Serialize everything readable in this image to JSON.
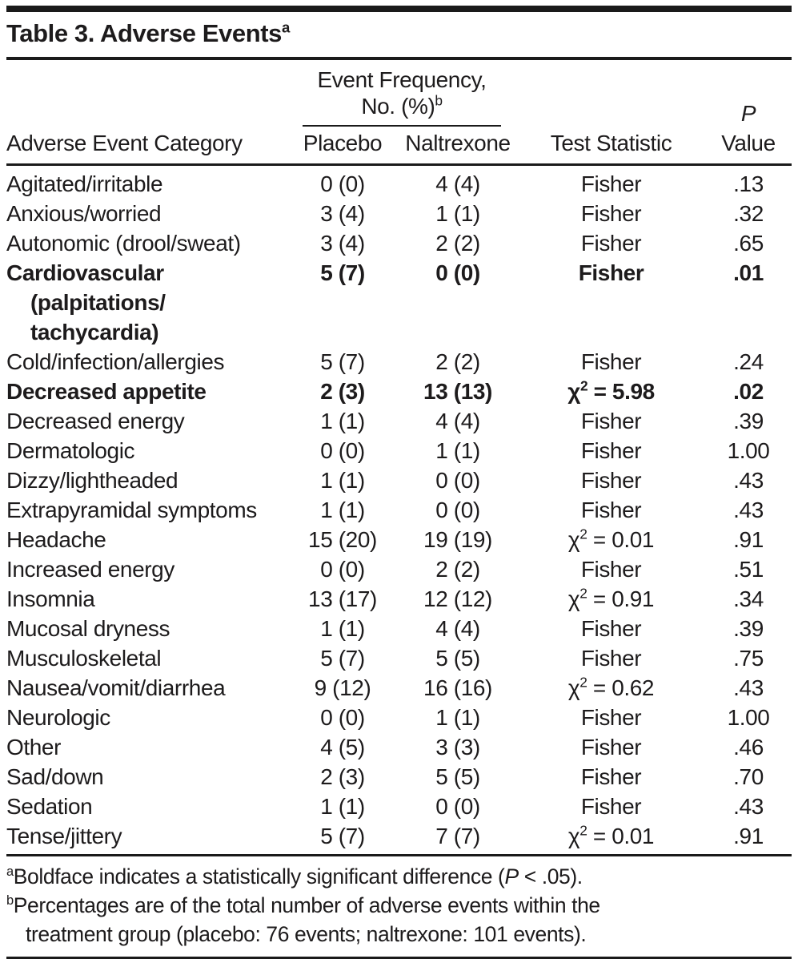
{
  "colors": {
    "text": "#1d1b1c",
    "rule": "#1a1a1a",
    "background": "#ffffff"
  },
  "table": {
    "title": "Table 3. Adverse Events",
    "title_marker": "a",
    "columns": {
      "category": "Adverse Event Category",
      "spanner_line1": "Event Frequency,",
      "spanner_line2": "No. (%)",
      "spanner_marker": "b",
      "placebo": "Placebo",
      "naltrexone": "Naltrexone",
      "test_statistic": "Test Statistic",
      "p_line1": "P",
      "p_line2": "Value"
    },
    "rows": [
      {
        "category_lines": [
          "Agitated/irritable"
        ],
        "placebo": "0 (0)",
        "naltrexone": "4 (4)",
        "test": "Fisher",
        "p": ".13",
        "bold": false
      },
      {
        "category_lines": [
          "Anxious/worried"
        ],
        "placebo": "3 (4)",
        "naltrexone": "1 (1)",
        "test": "Fisher",
        "p": ".32",
        "bold": false
      },
      {
        "category_lines": [
          "Autonomic (drool/sweat)"
        ],
        "placebo": "3 (4)",
        "naltrexone": "2 (2)",
        "test": "Fisher",
        "p": ".65",
        "bold": false
      },
      {
        "category_lines": [
          "Cardiovascular",
          "(palpitations/",
          "tachycardia)"
        ],
        "placebo": "5 (7)",
        "naltrexone": "0 (0)",
        "test": "Fisher",
        "p": ".01",
        "bold": true
      },
      {
        "category_lines": [
          "Cold/infection/allergies"
        ],
        "placebo": "5 (7)",
        "naltrexone": "2 (2)",
        "test": "Fisher",
        "p": ".24",
        "bold": false
      },
      {
        "category_lines": [
          "Decreased appetite"
        ],
        "placebo": "2 (3)",
        "naltrexone": "13 (13)",
        "test": "χ2 = 5.98",
        "p": ".02",
        "bold": true
      },
      {
        "category_lines": [
          "Decreased energy"
        ],
        "placebo": "1 (1)",
        "naltrexone": "4 (4)",
        "test": "Fisher",
        "p": ".39",
        "bold": false
      },
      {
        "category_lines": [
          "Dermatologic"
        ],
        "placebo": "0 (0)",
        "naltrexone": "1 (1)",
        "test": "Fisher",
        "p": "1.00",
        "bold": false
      },
      {
        "category_lines": [
          "Dizzy/lightheaded"
        ],
        "placebo": "1 (1)",
        "naltrexone": "0 (0)",
        "test": "Fisher",
        "p": ".43",
        "bold": false
      },
      {
        "category_lines": [
          "Extrapyramidal symptoms"
        ],
        "placebo": "1 (1)",
        "naltrexone": "0 (0)",
        "test": "Fisher",
        "p": ".43",
        "bold": false
      },
      {
        "category_lines": [
          "Headache"
        ],
        "placebo": "15 (20)",
        "naltrexone": "19 (19)",
        "test": "χ2 = 0.01",
        "p": ".91",
        "bold": false
      },
      {
        "category_lines": [
          "Increased energy"
        ],
        "placebo": "0 (0)",
        "naltrexone": "2 (2)",
        "test": "Fisher",
        "p": ".51",
        "bold": false
      },
      {
        "category_lines": [
          "Insomnia"
        ],
        "placebo": "13 (17)",
        "naltrexone": "12 (12)",
        "test": "χ2 = 0.91",
        "p": ".34",
        "bold": false
      },
      {
        "category_lines": [
          "Mucosal dryness"
        ],
        "placebo": "1 (1)",
        "naltrexone": "4 (4)",
        "test": "Fisher",
        "p": ".39",
        "bold": false
      },
      {
        "category_lines": [
          "Musculoskeletal"
        ],
        "placebo": "5 (7)",
        "naltrexone": "5 (5)",
        "test": "Fisher",
        "p": ".75",
        "bold": false
      },
      {
        "category_lines": [
          "Nausea/vomit/diarrhea"
        ],
        "placebo": "9 (12)",
        "naltrexone": "16 (16)",
        "test": "χ2 = 0.62",
        "p": ".43",
        "bold": false
      },
      {
        "category_lines": [
          "Neurologic"
        ],
        "placebo": "0 (0)",
        "naltrexone": "1 (1)",
        "test": "Fisher",
        "p": "1.00",
        "bold": false
      },
      {
        "category_lines": [
          "Other"
        ],
        "placebo": "4 (5)",
        "naltrexone": "3 (3)",
        "test": "Fisher",
        "p": ".46",
        "bold": false
      },
      {
        "category_lines": [
          "Sad/down"
        ],
        "placebo": "2 (3)",
        "naltrexone": "5 (5)",
        "test": "Fisher",
        "p": ".70",
        "bold": false
      },
      {
        "category_lines": [
          "Sedation"
        ],
        "placebo": "1 (1)",
        "naltrexone": "0 (0)",
        "test": "Fisher",
        "p": ".43",
        "bold": false
      },
      {
        "category_lines": [
          "Tense/jittery"
        ],
        "placebo": "5 (7)",
        "naltrexone": "7 (7)",
        "test": "χ2 = 0.01",
        "p": ".91",
        "bold": false
      }
    ],
    "footnotes": [
      {
        "marker": "a",
        "lines": [
          [
            {
              "t": "Boldface indicates a statistically significant difference ("
            },
            {
              "t": "P",
              "italic": true
            },
            {
              "t": " < .05)."
            }
          ]
        ]
      },
      {
        "marker": "b",
        "lines": [
          [
            {
              "t": "Percentages are of the total number of adverse events within the"
            }
          ],
          [
            {
              "t": "treatment group (placebo: 76 events; naltrexone: 101 events)."
            }
          ]
        ]
      }
    ]
  }
}
